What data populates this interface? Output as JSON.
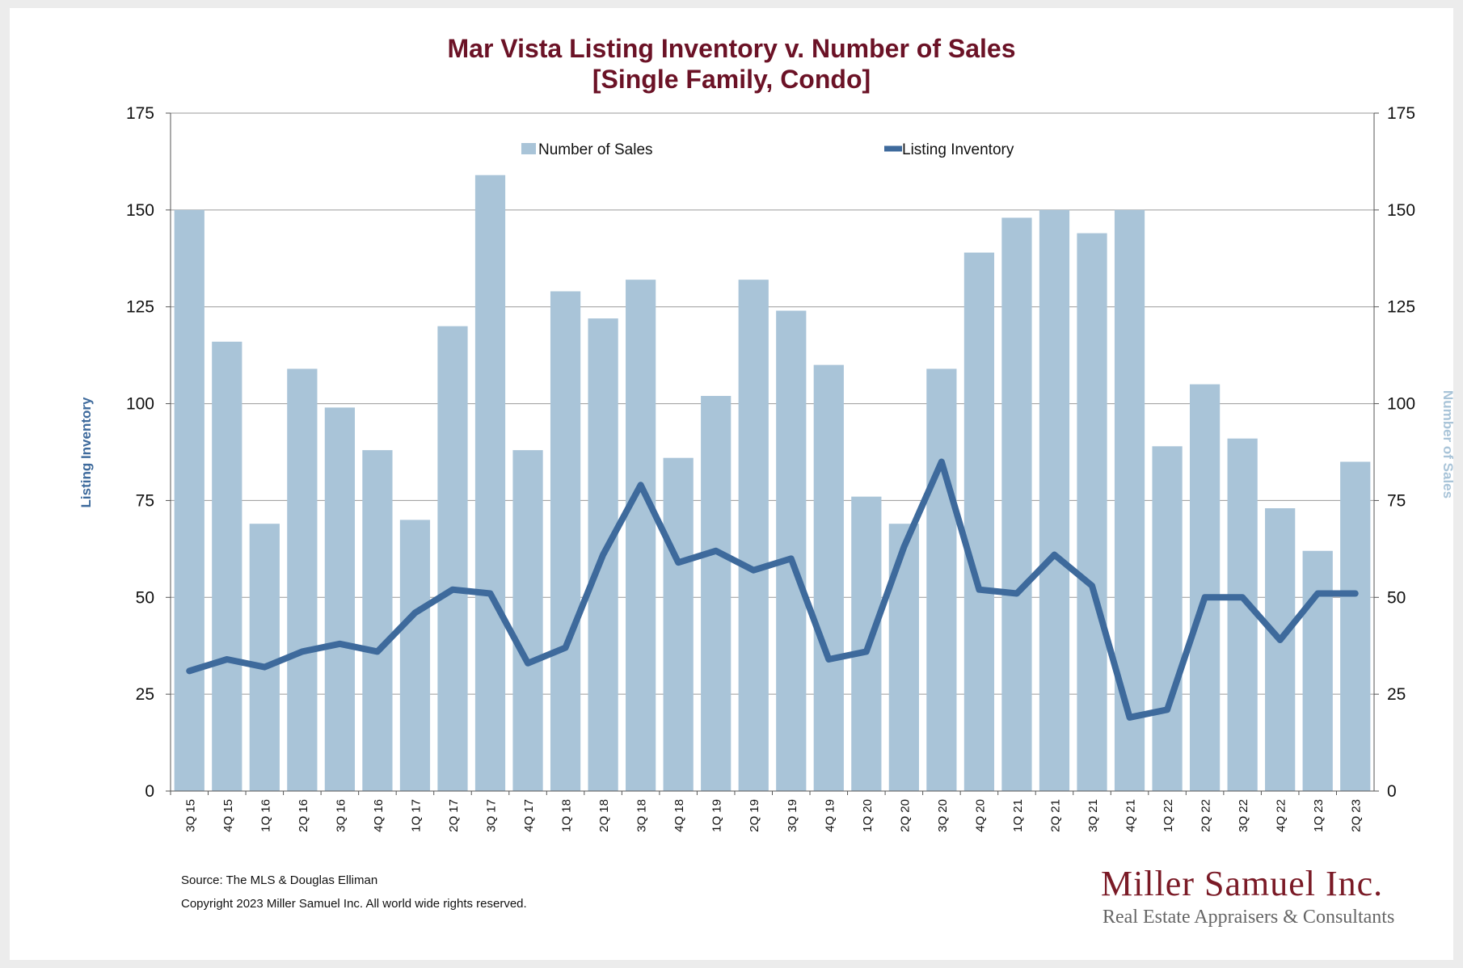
{
  "title": {
    "line1": "Mar Vista Listing Inventory v. Number of Sales",
    "line2": "[Single Family, Condo]"
  },
  "footer": {
    "source": "Source: The MLS & Douglas Elliman",
    "copyright": "Copyright 2023 Miller Samuel Inc.  All world wide rights reserved."
  },
  "logo": {
    "name": "Miller Samuel Inc.",
    "tagline": "Real Estate Appraisers & Consultants"
  },
  "colors": {
    "bars": "#a9c4d8",
    "line": "#3e6a9c",
    "title": "#6b1226",
    "grid": "#9a9a9a"
  },
  "chart_data": {
    "type": "bar",
    "categories": [
      "3Q 15",
      "4Q 15",
      "1Q 16",
      "2Q 16",
      "3Q 16",
      "4Q 16",
      "1Q 17",
      "2Q 17",
      "3Q 17",
      "4Q 17",
      "1Q 18",
      "2Q 18",
      "3Q 18",
      "4Q 18",
      "1Q 19",
      "2Q 19",
      "3Q 19",
      "4Q 19",
      "1Q 20",
      "2Q 20",
      "3Q 20",
      "4Q 20",
      "1Q 21",
      "2Q 21",
      "3Q 21",
      "4Q 21",
      "1Q 22",
      "2Q 22",
      "3Q 22",
      "4Q 22",
      "1Q 23",
      "2Q 23"
    ],
    "series": [
      {
        "name": "Number of Sales",
        "type": "bar",
        "axis": "right",
        "values": [
          150,
          116,
          69,
          109,
          99,
          88,
          70,
          120,
          159,
          88,
          129,
          122,
          132,
          86,
          102,
          132,
          124,
          110,
          76,
          69,
          109,
          139,
          148,
          150,
          144,
          150,
          89,
          105,
          91,
          73,
          62,
          85
        ]
      },
      {
        "name": "Listing Inventory",
        "type": "line",
        "axis": "left",
        "values": [
          31,
          34,
          32,
          36,
          38,
          36,
          46,
          52,
          51,
          33,
          37,
          61,
          79,
          59,
          62,
          57,
          60,
          34,
          36,
          63,
          85,
          52,
          51,
          61,
          53,
          19,
          21,
          50,
          50,
          39,
          51,
          51
        ]
      }
    ],
    "ylabel": "Listing Inventory",
    "y2label": "Number of Sales",
    "ylim": [
      0,
      175
    ],
    "y2lim": [
      0,
      175
    ],
    "yticks": [
      0,
      25,
      50,
      75,
      100,
      125,
      150,
      175
    ],
    "grid": true,
    "legend": "top-center"
  }
}
